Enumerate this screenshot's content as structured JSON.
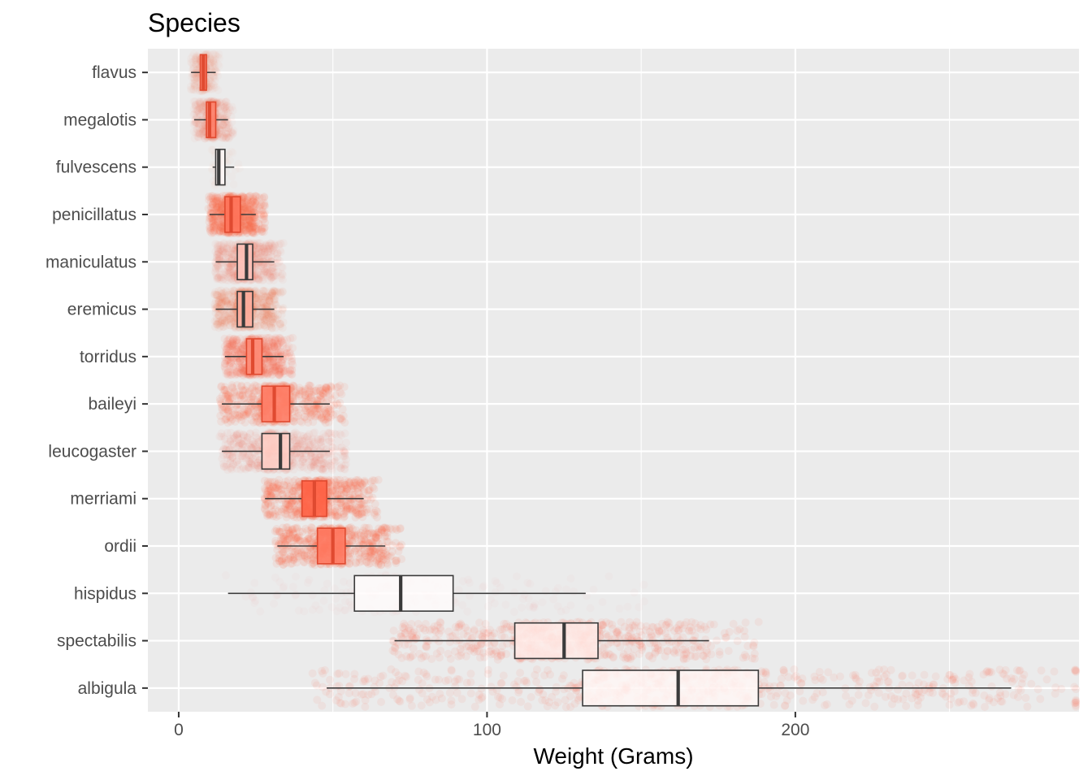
{
  "chart_data": {
    "type": "boxplot",
    "title": "Species",
    "xlabel": "Weight (Grams)",
    "ylabel": "",
    "orientation": "horizontal",
    "xlim": [
      -10,
      292
    ],
    "xticks": [
      0,
      100,
      200
    ],
    "grid": true,
    "colors": {
      "panel": "#ebebeb",
      "grid": "#ffffff",
      "box_outline": "#3a3a3a",
      "jitter_point": "#ff6347",
      "box_fill_min": "#ffffff",
      "box_fill_max": "#ff6347"
    },
    "species": [
      {
        "name": "flavus",
        "min": 4,
        "q1": 7,
        "median": 8,
        "q3": 9,
        "max": 12,
        "n": 300,
        "fill_intensity": 0.85
      },
      {
        "name": "megalotis",
        "min": 5,
        "q1": 9,
        "median": 10,
        "q3": 12,
        "max": 16,
        "n": 500,
        "fill_intensity": 0.8
      },
      {
        "name": "fulvescens",
        "min": 11,
        "q1": 12,
        "median": 13,
        "q3": 15,
        "max": 18,
        "n": 40,
        "fill_intensity": 0.05
      },
      {
        "name": "penicillatus",
        "min": 10,
        "q1": 15,
        "median": 17,
        "q3": 20,
        "max": 25,
        "n": 2900,
        "fill_intensity": 0.88
      },
      {
        "name": "maniculatus",
        "min": 12,
        "q1": 19,
        "median": 22,
        "q3": 24,
        "max": 31,
        "n": 800,
        "fill_intensity": 0.35
      },
      {
        "name": "eremicus",
        "min": 12,
        "q1": 19,
        "median": 21,
        "q3": 24,
        "max": 31,
        "n": 1200,
        "fill_intensity": 0.5
      },
      {
        "name": "torridus",
        "min": 15,
        "q1": 22,
        "median": 24,
        "q3": 27,
        "max": 34,
        "n": 2200,
        "fill_intensity": 0.72
      },
      {
        "name": "baileyi",
        "min": 14,
        "q1": 27,
        "median": 31,
        "q3": 36,
        "max": 49,
        "n": 2800,
        "fill_intensity": 0.82
      },
      {
        "name": "leucogaster",
        "min": 14,
        "q1": 27,
        "median": 33,
        "q3": 36,
        "max": 49,
        "n": 1000,
        "fill_intensity": 0.28
      },
      {
        "name": "merriami",
        "min": 28,
        "q1": 40,
        "median": 44,
        "q3": 48,
        "max": 60,
        "n": 9800,
        "fill_intensity": 1.0
      },
      {
        "name": "ordii",
        "min": 32,
        "q1": 45,
        "median": 50,
        "q3": 54,
        "max": 67,
        "n": 3000,
        "fill_intensity": 0.85
      },
      {
        "name": "hispidus",
        "min": 16,
        "q1": 57,
        "median": 72,
        "q3": 89,
        "max": 132,
        "n": 180,
        "fill_intensity": 0.02
      },
      {
        "name": "spectabilis",
        "min": 70,
        "q1": 109,
        "median": 125,
        "q3": 136,
        "max": 172,
        "n": 2500,
        "fill_intensity": 0.12
      },
      {
        "name": "albigula",
        "min": 48,
        "q1": 131,
        "median": 162,
        "q3": 188,
        "max": 270,
        "n": 2400,
        "fill_intensity": 0.05
      }
    ]
  }
}
